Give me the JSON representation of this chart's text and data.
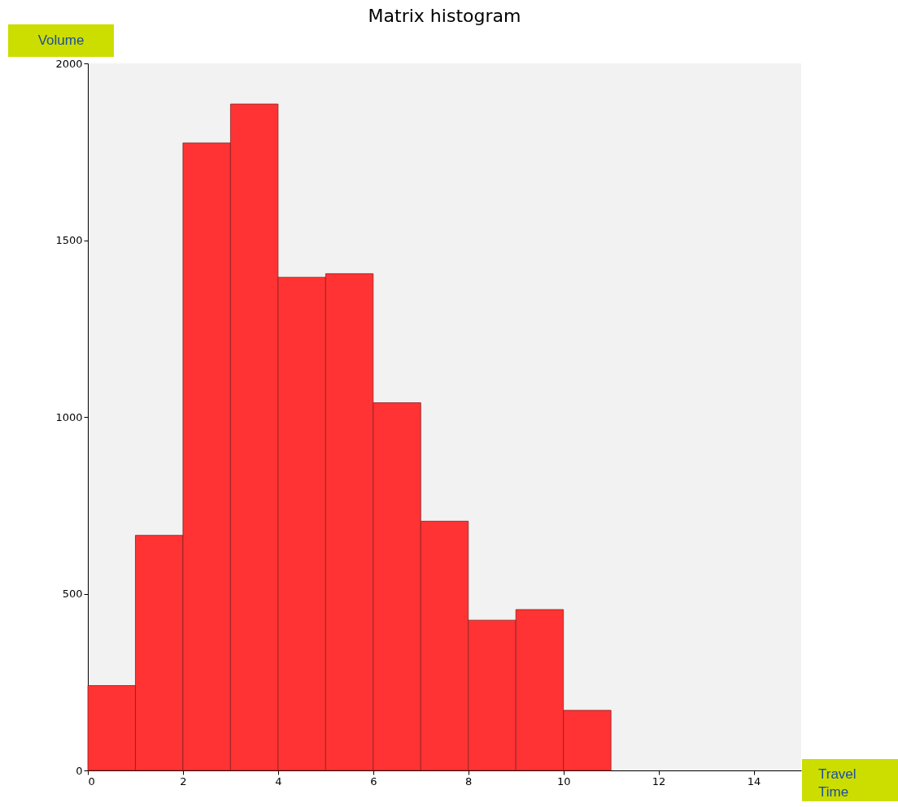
{
  "chart_data": {
    "type": "histogram",
    "title": "Matrix histogram",
    "xlabel": "Travel Time",
    "ylabel": "Volume",
    "bins": [
      0,
      1,
      2,
      3,
      4,
      5,
      6,
      7,
      8,
      9,
      10,
      11
    ],
    "values": [
      240,
      665,
      1775,
      1885,
      1395,
      1405,
      1040,
      705,
      425,
      455,
      170
    ],
    "color": "#ff3333",
    "xlim": [
      0,
      15
    ],
    "xticks": [
      0,
      2,
      4,
      6,
      8,
      10,
      12,
      14
    ],
    "ylim": [
      0,
      2000
    ],
    "yticks": [
      0,
      500,
      1000,
      1500,
      2000
    ],
    "grid": false
  }
}
